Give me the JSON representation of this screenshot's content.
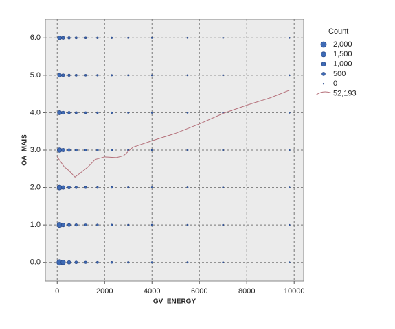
{
  "chart_data": {
    "type": "scatter",
    "xlabel": "GV_ENERGY",
    "ylabel": "OA_MAIS",
    "xlim": [
      -500,
      10400
    ],
    "ylim": [
      -0.5,
      6.5
    ],
    "xticks": [
      0,
      2000,
      4000,
      6000,
      8000,
      10000
    ],
    "yticks": [
      {
        "value": 0,
        "label": "0.0"
      },
      {
        "value": 1,
        "label": "1.0"
      },
      {
        "value": 2,
        "label": "2.0"
      },
      {
        "value": 3,
        "label": "3.0"
      },
      {
        "value": 4,
        "label": "4.0"
      },
      {
        "value": 5,
        "label": "5.0"
      },
      {
        "value": 6,
        "label": "6.0"
      }
    ],
    "grid": true,
    "points": {
      "color": "#2b4a8a",
      "x": [
        100,
        250,
        500,
        800,
        1200,
        1700,
        2300,
        3000,
        4000,
        5500,
        7000,
        9800,
        100,
        250,
        500,
        800,
        1200,
        1700,
        2300,
        3000,
        4000,
        5500,
        7000,
        9800,
        100,
        250,
        500,
        800,
        1200,
        1700,
        2300,
        3000,
        4000,
        5500,
        7000,
        9800,
        100,
        250,
        500,
        800,
        1200,
        1700,
        2300,
        3000,
        4000,
        5500,
        7000,
        9800,
        100,
        250,
        500,
        800,
        1200,
        1700,
        2300,
        3000,
        4000,
        5500,
        7000,
        9800,
        100,
        250,
        500,
        800,
        1200,
        1700,
        2300,
        3000,
        4000,
        5500,
        7000,
        9800,
        100,
        250,
        500,
        800,
        1200,
        1700,
        2300,
        3000,
        4000,
        5500,
        7000,
        9800
      ],
      "y": [
        6,
        6,
        6,
        6,
        6,
        6,
        6,
        6,
        6,
        6,
        6,
        6,
        5,
        5,
        5,
        5,
        5,
        5,
        5,
        5,
        5,
        5,
        5,
        5,
        4,
        4,
        4,
        4,
        4,
        4,
        4,
        4,
        4,
        4,
        4,
        4,
        3,
        3,
        3,
        3,
        3,
        3,
        3,
        3,
        3,
        3,
        3,
        3,
        2,
        2,
        2,
        2,
        2,
        2,
        2,
        2,
        2,
        2,
        2,
        2,
        1,
        1,
        1,
        1,
        1,
        1,
        1,
        1,
        1,
        1,
        1,
        1,
        0,
        0,
        0,
        0,
        0,
        0,
        0,
        0,
        0,
        0,
        0,
        0
      ],
      "size": [
        900,
        400,
        200,
        100,
        60,
        40,
        25,
        15,
        10,
        5,
        3,
        2,
        800,
        350,
        180,
        90,
        50,
        35,
        20,
        12,
        8,
        4,
        2,
        1,
        1000,
        450,
        220,
        110,
        70,
        45,
        30,
        18,
        10,
        6,
        3,
        2,
        1300,
        600,
        300,
        150,
        90,
        60,
        40,
        25,
        15,
        8,
        4,
        2,
        1400,
        650,
        320,
        160,
        95,
        60,
        40,
        25,
        15,
        8,
        4,
        2,
        1600,
        700,
        350,
        170,
        100,
        65,
        40,
        25,
        15,
        8,
        4,
        2,
        2000,
        1200,
        500,
        250,
        150,
        90,
        60,
        35,
        20,
        10,
        5,
        3
      ]
    },
    "fit_line": {
      "name": "52,193",
      "color": "#b5707a",
      "x": [
        0,
        300,
        500,
        750,
        1000,
        1300,
        1600,
        2000,
        2500,
        2800,
        3200,
        4000,
        5000,
        6000,
        7000,
        8000,
        9000,
        9800
      ],
      "y": [
        2.82,
        2.55,
        2.45,
        2.28,
        2.4,
        2.55,
        2.75,
        2.82,
        2.8,
        2.85,
        3.08,
        3.25,
        3.45,
        3.7,
        3.98,
        4.2,
        4.4,
        4.6
      ]
    },
    "size_legend": {
      "title": "Count",
      "values": [
        {
          "value": 2000,
          "label": "2,000"
        },
        {
          "value": 1500,
          "label": "1,500"
        },
        {
          "value": 1000,
          "label": "1,000"
        },
        500,
        0
      ]
    }
  }
}
